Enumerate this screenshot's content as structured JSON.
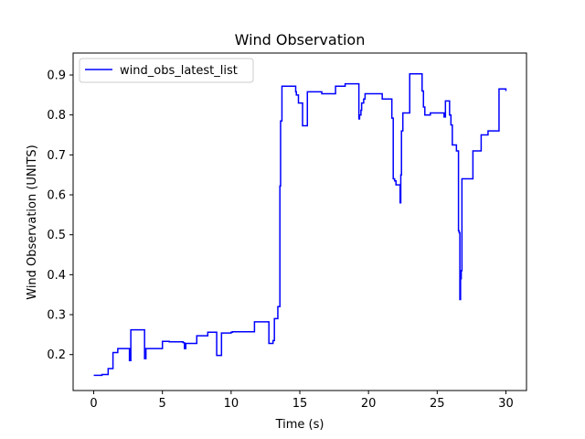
{
  "chart_data": {
    "type": "line",
    "title": "Wind Observation",
    "xlabel": "Time (s)",
    "ylabel": "Wind Observation (UNITS)",
    "xlim": [
      -1.5,
      31.5
    ],
    "ylim": [
      0.11,
      0.955
    ],
    "xticks": [
      0,
      5,
      10,
      15,
      20,
      25,
      30
    ],
    "yticks": [
      0.2,
      0.3,
      0.4,
      0.5,
      0.6,
      0.7,
      0.8,
      0.9
    ],
    "grid": false,
    "legend_position": "upper-left",
    "series": [
      {
        "name": "wind_obs_latest_list",
        "color": "#0000ff",
        "step": true,
        "x": [
          0.0,
          0.15,
          0.6,
          0.9,
          1.05,
          1.25,
          1.4,
          1.6,
          1.75,
          2.55,
          2.6,
          2.7,
          3.6,
          3.7,
          3.8,
          4.2,
          5.0,
          5.2,
          5.5,
          6.5,
          6.6,
          6.7,
          7.4,
          7.5,
          8.3,
          8.9,
          8.95,
          9.25,
          9.3,
          9.8,
          10.0,
          10.1,
          11.6,
          11.7,
          12.65,
          12.75,
          12.9,
          13.05,
          13.15,
          13.4,
          13.45,
          13.55,
          13.6,
          13.7,
          14.3,
          14.7,
          14.75,
          14.9,
          15.2,
          15.3,
          15.55,
          15.65,
          16.6,
          16.7,
          17.6,
          17.7,
          18.3,
          18.4,
          19.25,
          19.3,
          19.35,
          19.45,
          19.5,
          19.65,
          19.75,
          20.0,
          21.0,
          21.1,
          21.7,
          21.8,
          21.9,
          22.0,
          22.05,
          22.2,
          22.3,
          22.35,
          22.4,
          22.5,
          22.6,
          22.9,
          23.0,
          23.8,
          23.9,
          24.0,
          24.1,
          24.3,
          24.5,
          24.6,
          25.5,
          25.6,
          25.8,
          25.9,
          26.0,
          26.1,
          26.4,
          26.5,
          26.55,
          26.6,
          26.65,
          26.7,
          26.75,
          26.8,
          27.5,
          27.6,
          28.1,
          28.2,
          28.65,
          28.7,
          29.5,
          29.6,
          29.9,
          30.0
        ],
        "y": [
          0.148,
          0.148,
          0.15,
          0.15,
          0.165,
          0.165,
          0.205,
          0.205,
          0.215,
          0.215,
          0.185,
          0.262,
          0.262,
          0.19,
          0.215,
          0.215,
          0.233,
          0.233,
          0.232,
          0.23,
          0.215,
          0.228,
          0.228,
          0.247,
          0.256,
          0.256,
          0.198,
          0.198,
          0.254,
          0.254,
          0.256,
          0.257,
          0.257,
          0.282,
          0.282,
          0.228,
          0.228,
          0.235,
          0.29,
          0.32,
          0.32,
          0.622,
          0.785,
          0.872,
          0.872,
          0.858,
          0.85,
          0.83,
          0.773,
          0.773,
          0.858,
          0.858,
          0.853,
          0.853,
          0.872,
          0.872,
          0.878,
          0.878,
          0.878,
          0.79,
          0.8,
          0.812,
          0.83,
          0.84,
          0.853,
          0.853,
          0.84,
          0.84,
          0.792,
          0.64,
          0.635,
          0.625,
          0.625,
          0.625,
          0.58,
          0.65,
          0.76,
          0.805,
          0.805,
          0.805,
          0.903,
          0.903,
          0.86,
          0.82,
          0.8,
          0.8,
          0.805,
          0.805,
          0.795,
          0.835,
          0.835,
          0.8,
          0.775,
          0.725,
          0.71,
          0.71,
          0.51,
          0.505,
          0.338,
          0.39,
          0.41,
          0.64,
          0.64,
          0.71,
          0.71,
          0.75,
          0.75,
          0.76,
          0.865,
          0.865,
          0.865,
          0.86
        ]
      }
    ]
  }
}
